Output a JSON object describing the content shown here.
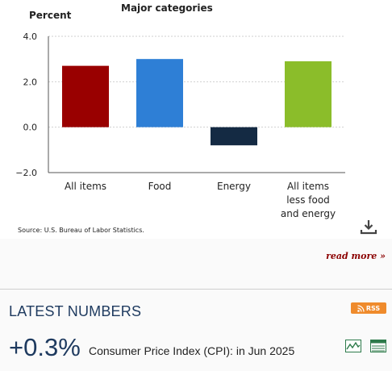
{
  "chart_data": {
    "type": "bar",
    "title": "Major categories",
    "ylabel": "Percent",
    "categories": [
      [
        "All items"
      ],
      [
        "Food"
      ],
      [
        "Energy"
      ],
      [
        "All items",
        "less food",
        "and energy"
      ]
    ],
    "values": [
      2.7,
      3.0,
      -0.8,
      2.9
    ],
    "colors": [
      "#990000",
      "#2e7fd6",
      "#142a43",
      "#8bbd2a"
    ],
    "ylim": [
      -2.0,
      4.0
    ],
    "yticks": [
      "4.0",
      "2.0",
      "0.0",
      "−2.0"
    ],
    "grid": true
  },
  "source": "Source: U.S. Bureau of Labor Statistics.",
  "download_icon": "download-icon",
  "read_more": "read more »",
  "latest": {
    "title": "LATEST NUMBERS",
    "rss_label": "RSS",
    "value": "+0.3%",
    "label": "Consumer Price Index (CPI): in Jun 2025"
  },
  "icons": {
    "chart": "line-chart-icon",
    "table": "table-icon",
    "rss": "rss-icon"
  },
  "colors": {
    "heading": "#1e3a5f",
    "read_more": "#8b0000",
    "rss": "#ef8b2c",
    "icon": "#2d7a4a"
  }
}
